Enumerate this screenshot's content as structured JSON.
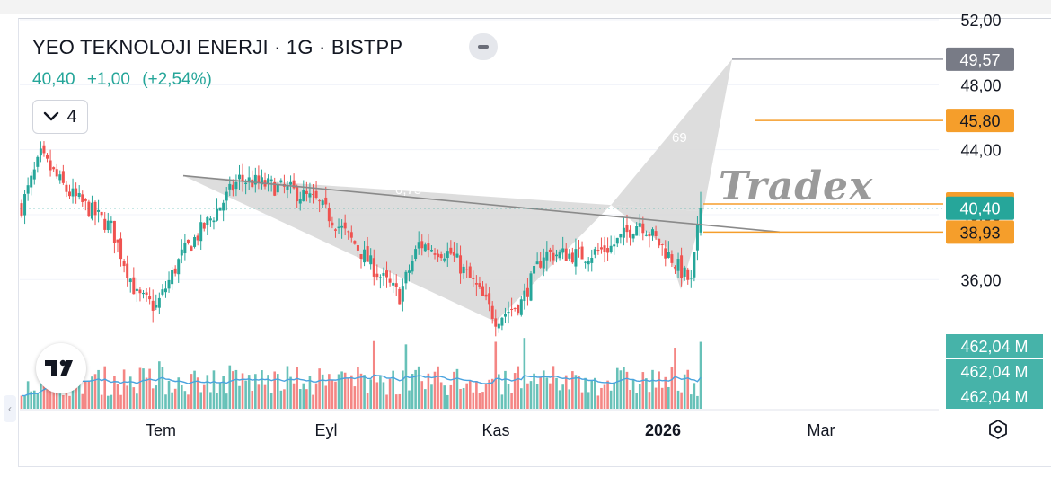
{
  "header": {
    "title": "YEO TEKNOLOJI ENERJI · 1G · BISTPP",
    "last_price": "40,40",
    "change_abs": "+1,00",
    "change_pct": "(+2,54%)",
    "indicator_count": "4"
  },
  "watermark": "Tradex",
  "colors": {
    "up": "#26a69a",
    "down": "#ef5350",
    "orange": "#f59e2b",
    "gray_label": "#787b86",
    "pattern_fill": "#d9d9d9",
    "volume_ma": "#4aa3df"
  },
  "chart_data": {
    "type": "candlestick",
    "symbol": "YEO TEKNOLOJI ENERJI",
    "interval": "1G",
    "exchange": "BISTPP",
    "y_axis_ticks": [
      "52,00",
      "48,00",
      "44,00",
      "40,00",
      "36,00"
    ],
    "y_axis_tick_values": [
      52,
      48,
      44,
      40,
      36
    ],
    "x_axis_ticks": [
      "Tem",
      "Eyl",
      "Kas",
      "2026",
      "Mar"
    ],
    "ylim": [
      32.2,
      52.0
    ],
    "price_labels": [
      {
        "text": "49,57",
        "value": 49.57,
        "style": "gray"
      },
      {
        "text": "45,80",
        "value": 45.8,
        "style": "orange"
      },
      {
        "text": "40,66",
        "value": 40.66,
        "style": "orange"
      },
      {
        "text": "40,40",
        "value": 40.4,
        "style": "green"
      },
      {
        "text": "38,93",
        "value": 38.93,
        "style": "orange"
      }
    ],
    "volume_labels": [
      "462,04 M",
      "462,04 M",
      "462,04 M"
    ],
    "pattern_ratio_labels": [
      "0,75",
      "69"
    ],
    "candle_count": 213,
    "candles_note": "daily OHLC approximated from image; generated deterministically in script from waypoints",
    "price_path_waypoints": [
      [
        0,
        40.5
      ],
      [
        6,
        43.6
      ],
      [
        14,
        41.5
      ],
      [
        28,
        39.2
      ],
      [
        36,
        35.0
      ],
      [
        42,
        34.3
      ],
      [
        50,
        37.5
      ],
      [
        60,
        40.0
      ],
      [
        68,
        42.2
      ],
      [
        84,
        41.5
      ],
      [
        92,
        40.8
      ],
      [
        104,
        38.2
      ],
      [
        112,
        36.2
      ],
      [
        118,
        35.0
      ],
      [
        124,
        38.2
      ],
      [
        134,
        37.6
      ],
      [
        142,
        35.5
      ],
      [
        148,
        33.6
      ],
      [
        156,
        34.6
      ],
      [
        163,
        37.6
      ],
      [
        176,
        37.5
      ],
      [
        184,
        38.0
      ],
      [
        193,
        39.6
      ],
      [
        203,
        37.3
      ],
      [
        206,
        36.5
      ],
      [
        209,
        35.8
      ],
      [
        212,
        40.4
      ]
    ]
  }
}
